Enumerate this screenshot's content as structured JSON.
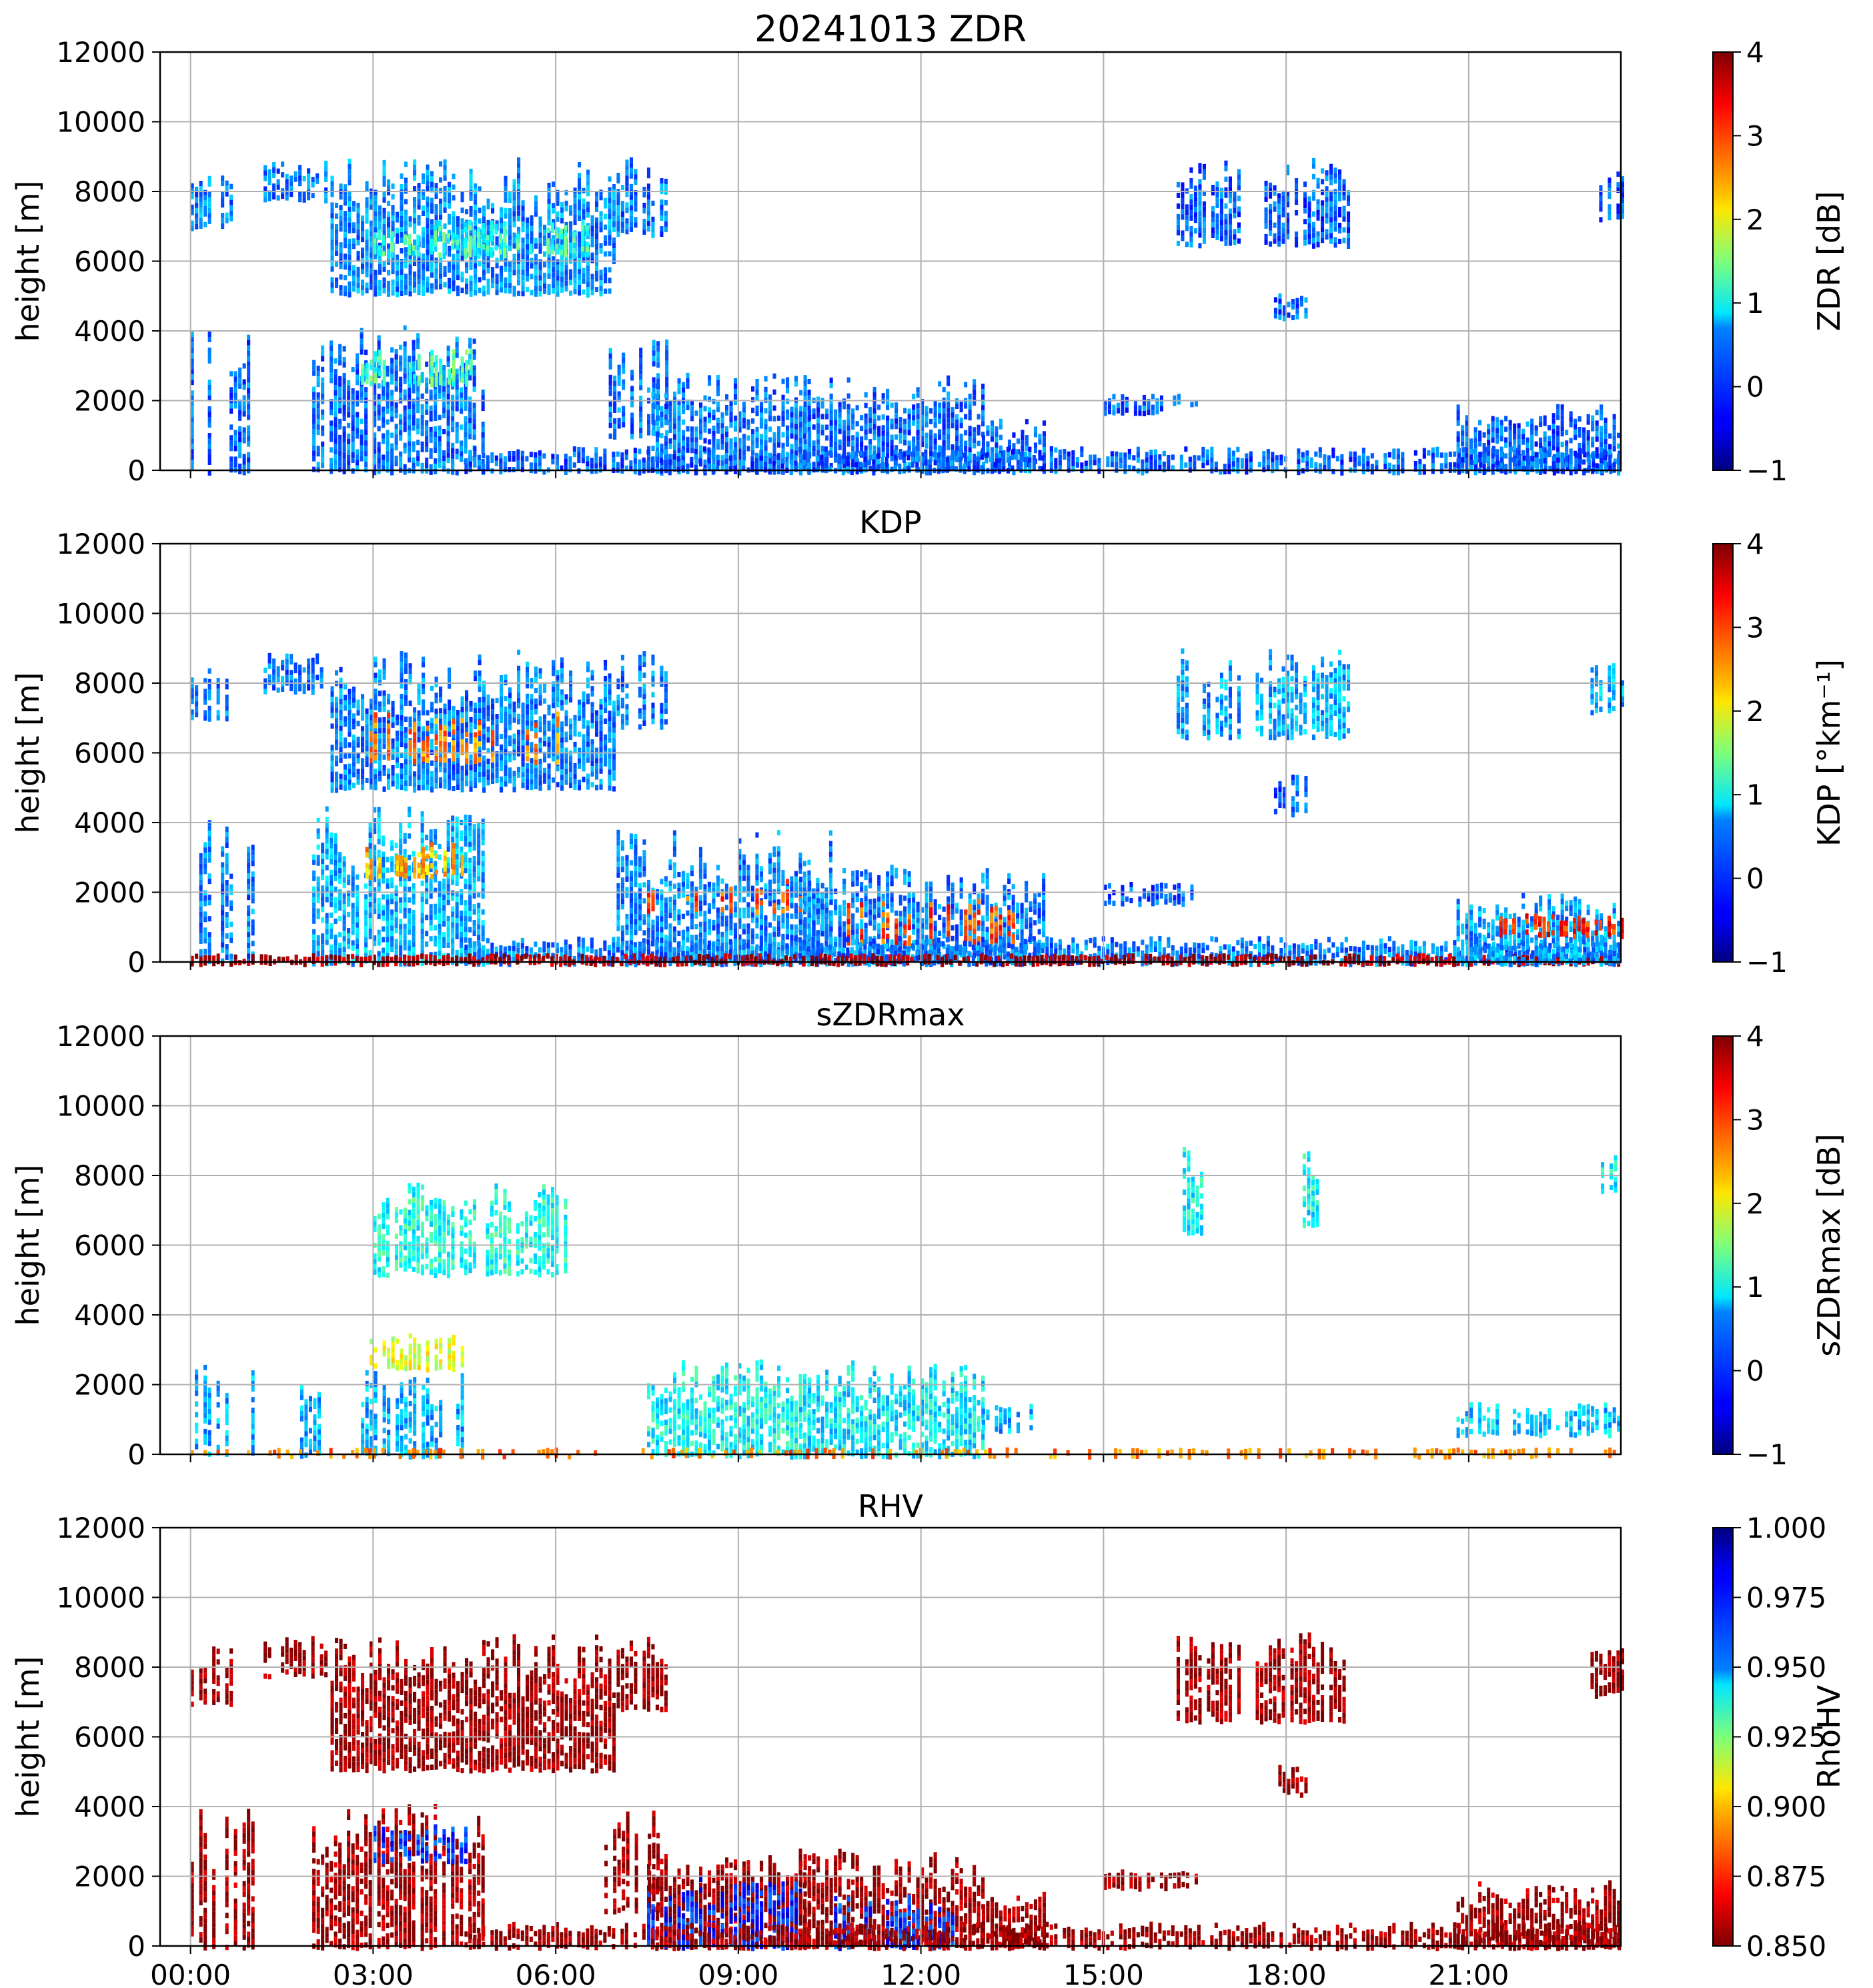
{
  "figure": {
    "colormap": "jet"
  },
  "chart_data": [
    {
      "type": "heatmap",
      "title": "20241013 ZDR",
      "ylabel": "height [m]",
      "ylim": [
        0,
        12000
      ],
      "yticks": [
        "0",
        "2000",
        "4000",
        "6000",
        "8000",
        "10000",
        "12000"
      ],
      "xlim": [
        -0.5,
        23.5
      ],
      "xticks": [
        "00:00",
        "03:00",
        "06:00",
        "09:00",
        "12:00",
        "15:00",
        "18:00",
        "21:00"
      ],
      "show_xticklabels": false,
      "colorbar": {
        "label": "ZDR [dB]",
        "range": [
          -1,
          4
        ],
        "ticks": [
          "−1",
          "0",
          "1",
          "2",
          "3",
          "4"
        ],
        "reversed": false
      },
      "regions": [
        {
          "t0": 0.0,
          "t1": 0.7,
          "h0": 7000,
          "h1": 8600,
          "level": 0.25
        },
        {
          "t0": 0.0,
          "t1": 1.0,
          "h0": 0,
          "h1": 4000,
          "level": 0.22,
          "density": 0.35
        },
        {
          "t0": 1.2,
          "t1": 2.2,
          "h0": 7800,
          "h1": 8900,
          "level": 0.24
        },
        {
          "t0": 2.3,
          "t1": 7.0,
          "h0": 5100,
          "h1": 9000,
          "level": 0.26,
          "density": 0.8
        },
        {
          "t0": 3.0,
          "t1": 6.5,
          "h0": 6200,
          "h1": 7200,
          "level": 0.42,
          "density": 0.45
        },
        {
          "t0": 2.0,
          "t1": 4.8,
          "h0": 0,
          "h1": 4200,
          "level": 0.24,
          "density": 0.7
        },
        {
          "t0": 2.8,
          "t1": 4.6,
          "h0": 2500,
          "h1": 3500,
          "level": 0.45,
          "density": 0.5
        },
        {
          "t0": 7.0,
          "t1": 7.8,
          "h0": 6800,
          "h1": 9000,
          "level": 0.24
        },
        {
          "t0": 6.8,
          "t1": 7.8,
          "h0": 1000,
          "h1": 3900,
          "level": 0.24,
          "density": 0.4
        },
        {
          "t0": 7.5,
          "t1": 10.2,
          "h0": 0,
          "h1": 2800,
          "level": 0.24,
          "density": 0.85
        },
        {
          "t0": 10.0,
          "t1": 13.0,
          "h0": 0,
          "h1": 2800,
          "level": 0.23,
          "density": 0.8
        },
        {
          "t0": 13.0,
          "t1": 14.0,
          "h0": 0,
          "h1": 1600,
          "level": 0.22,
          "density": 0.7
        },
        {
          "t0": 4.5,
          "t1": 23.5,
          "h0": 0,
          "h1": 700,
          "level": 0.22,
          "density": 0.7
        },
        {
          "t0": 16.2,
          "t1": 17.2,
          "h0": 6500,
          "h1": 9000,
          "level": 0.22,
          "density": 0.6
        },
        {
          "t0": 17.5,
          "t1": 19.0,
          "h0": 6500,
          "h1": 9000,
          "level": 0.22,
          "density": 0.7
        },
        {
          "t0": 17.8,
          "t1": 18.3,
          "h0": 4400,
          "h1": 5200,
          "level": 0.22
        },
        {
          "t0": 15.0,
          "t1": 16.5,
          "h0": 1700,
          "h1": 2200,
          "level": 0.22,
          "density": 0.5
        },
        {
          "t0": 20.8,
          "t1": 23.5,
          "h0": 0,
          "h1": 1900,
          "level": 0.22,
          "density": 0.85
        },
        {
          "t0": 23.0,
          "t1": 23.5,
          "h0": 7200,
          "h1": 8800,
          "level": 0.22
        }
      ]
    },
    {
      "type": "heatmap",
      "title": "KDP",
      "ylabel": "height [m]",
      "ylim": [
        0,
        12000
      ],
      "yticks": [
        "0",
        "2000",
        "4000",
        "6000",
        "8000",
        "10000",
        "12000"
      ],
      "xlim": [
        -0.5,
        23.5
      ],
      "xticks": [
        "00:00",
        "03:00",
        "06:00",
        "09:00",
        "12:00",
        "15:00",
        "18:00",
        "21:00"
      ],
      "show_xticklabels": false,
      "colorbar": {
        "label": "KDP [°km⁻¹]",
        "range": [
          -1,
          4
        ],
        "ticks": [
          "−1",
          "0",
          "1",
          "2",
          "3",
          "4"
        ],
        "reversed": false
      },
      "regions": [
        {
          "t0": 0.0,
          "t1": 0.7,
          "h0": 7000,
          "h1": 8600,
          "level": 0.25
        },
        {
          "t0": 0.0,
          "t1": 1.0,
          "h0": 0,
          "h1": 4500,
          "level": 0.25,
          "density": 0.45
        },
        {
          "t0": 1.2,
          "t1": 2.2,
          "h0": 7800,
          "h1": 8900,
          "level": 0.24
        },
        {
          "t0": 2.3,
          "t1": 7.0,
          "h0": 5000,
          "h1": 9000,
          "level": 0.25,
          "density": 0.85
        },
        {
          "t0": 2.8,
          "t1": 6.2,
          "h0": 5800,
          "h1": 7200,
          "level": 0.75,
          "density": 0.35
        },
        {
          "t0": 2.0,
          "t1": 4.8,
          "h0": 0,
          "h1": 4500,
          "level": 0.3,
          "density": 0.75
        },
        {
          "t0": 2.8,
          "t1": 4.5,
          "h0": 2500,
          "h1": 3500,
          "level": 0.7,
          "density": 0.35
        },
        {
          "t0": 7.0,
          "t1": 7.8,
          "h0": 6800,
          "h1": 9000,
          "level": 0.25
        },
        {
          "t0": 7.0,
          "t1": 10.5,
          "h0": 0,
          "h1": 3800,
          "level": 0.26,
          "density": 0.8
        },
        {
          "t0": 7.5,
          "t1": 10.0,
          "h0": 1500,
          "h1": 2400,
          "level": 0.8,
          "density": 0.3
        },
        {
          "t0": 10.0,
          "t1": 14.0,
          "h0": 0,
          "h1": 2800,
          "level": 0.25,
          "density": 0.8
        },
        {
          "t0": 10.5,
          "t1": 13.5,
          "h0": 600,
          "h1": 1900,
          "level": 0.8,
          "density": 0.3
        },
        {
          "t0": 4.5,
          "t1": 23.5,
          "h0": 0,
          "h1": 750,
          "level": 0.25,
          "density": 0.8
        },
        {
          "t0": 0.0,
          "t1": 23.5,
          "h0": 0,
          "h1": 250,
          "level": 0.97,
          "density": 0.85
        },
        {
          "t0": 16.2,
          "t1": 17.2,
          "h0": 6500,
          "h1": 9000,
          "level": 0.28,
          "density": 0.6
        },
        {
          "t0": 17.5,
          "t1": 19.0,
          "h0": 6500,
          "h1": 9000,
          "level": 0.3,
          "density": 0.7
        },
        {
          "t0": 17.8,
          "t1": 18.3,
          "h0": 4300,
          "h1": 5400,
          "level": 0.22
        },
        {
          "t0": 15.0,
          "t1": 16.5,
          "h0": 1700,
          "h1": 2300,
          "level": 0.22,
          "density": 0.55
        },
        {
          "t0": 20.8,
          "t1": 23.5,
          "h0": 0,
          "h1": 2000,
          "level": 0.28,
          "density": 0.85
        },
        {
          "t0": 21.5,
          "t1": 23.5,
          "h0": 800,
          "h1": 1400,
          "level": 0.85,
          "density": 0.3
        },
        {
          "t0": 23.0,
          "t1": 23.5,
          "h0": 7200,
          "h1": 8800,
          "level": 0.3
        }
      ]
    },
    {
      "type": "heatmap",
      "title": "sZDRmax",
      "ylabel": "height [m]",
      "ylim": [
        0,
        12000
      ],
      "yticks": [
        "0",
        "2000",
        "4000",
        "6000",
        "8000",
        "10000",
        "12000"
      ],
      "xlim": [
        -0.5,
        23.5
      ],
      "xticks": [
        "00:00",
        "03:00",
        "06:00",
        "09:00",
        "12:00",
        "15:00",
        "18:00",
        "21:00"
      ],
      "show_xticklabels": false,
      "colorbar": {
        "label": "sZDRmax [dB]",
        "range": [
          -1,
          4
        ],
        "ticks": [
          "−1",
          "0",
          "1",
          "2",
          "3",
          "4"
        ],
        "reversed": false
      },
      "regions": [
        {
          "t0": 3.0,
          "t1": 6.2,
          "h0": 5200,
          "h1": 7800,
          "level": 0.4,
          "density": 0.7
        },
        {
          "t0": 2.8,
          "t1": 4.5,
          "h0": 2500,
          "h1": 3500,
          "level": 0.6,
          "density": 0.6
        },
        {
          "t0": 0.0,
          "t1": 1.0,
          "h0": 0,
          "h1": 3000,
          "level": 0.3,
          "density": 0.25
        },
        {
          "t0": 1.8,
          "t1": 2.1,
          "h0": 0,
          "h1": 2200,
          "level": 0.3
        },
        {
          "t0": 2.8,
          "t1": 4.5,
          "h0": 0,
          "h1": 2500,
          "level": 0.3,
          "density": 0.45
        },
        {
          "t0": 7.5,
          "t1": 10.2,
          "h0": 0,
          "h1": 2800,
          "level": 0.38,
          "density": 0.85
        },
        {
          "t0": 10.0,
          "t1": 13.0,
          "h0": 0,
          "h1": 2800,
          "level": 0.36,
          "density": 0.75
        },
        {
          "t0": 13.0,
          "t1": 14.0,
          "h0": 700,
          "h1": 1500,
          "level": 0.3,
          "density": 0.4
        },
        {
          "t0": 0.0,
          "t1": 23.5,
          "h0": 0,
          "h1": 200,
          "level": 0.75,
          "density": 0.3
        },
        {
          "t0": 16.3,
          "t1": 16.6,
          "h0": 6400,
          "h1": 9000,
          "level": 0.38
        },
        {
          "t0": 18.2,
          "t1": 18.5,
          "h0": 6600,
          "h1": 8800,
          "level": 0.38
        },
        {
          "t0": 20.8,
          "t1": 23.5,
          "h0": 600,
          "h1": 1500,
          "level": 0.32,
          "density": 0.5
        },
        {
          "t0": 23.1,
          "t1": 23.4,
          "h0": 7600,
          "h1": 8600,
          "level": 0.38
        }
      ]
    },
    {
      "type": "heatmap",
      "title": "RHV",
      "ylabel": "height [m]",
      "ylim": [
        0,
        12000
      ],
      "yticks": [
        "0",
        "2000",
        "4000",
        "6000",
        "8000",
        "10000",
        "12000"
      ],
      "xlim": [
        -0.5,
        23.5
      ],
      "xticks": [
        "00:00",
        "03:00",
        "06:00",
        "09:00",
        "12:00",
        "15:00",
        "18:00",
        "21:00"
      ],
      "show_xticklabels": true,
      "colorbar": {
        "label": "RhoHV",
        "range": [
          0.85,
          1.0
        ],
        "ticks": [
          "0.850",
          "0.875",
          "0.900",
          "0.925",
          "0.950",
          "0.975",
          "1.000"
        ],
        "reversed": true
      },
      "regions": [
        {
          "t0": 0.0,
          "t1": 0.7,
          "h0": 7000,
          "h1": 8600,
          "level": 0.98
        },
        {
          "t0": 0.0,
          "t1": 1.0,
          "h0": 0,
          "h1": 4000,
          "level": 0.98,
          "density": 0.35
        },
        {
          "t0": 1.2,
          "t1": 2.2,
          "h0": 7800,
          "h1": 8900,
          "level": 0.98
        },
        {
          "t0": 2.3,
          "t1": 7.0,
          "h0": 5100,
          "h1": 9000,
          "level": 0.98,
          "density": 0.8
        },
        {
          "t0": 2.0,
          "t1": 4.8,
          "h0": 0,
          "h1": 4200,
          "level": 0.97,
          "density": 0.7
        },
        {
          "t0": 3.0,
          "t1": 4.5,
          "h0": 2500,
          "h1": 3500,
          "level": 0.18,
          "density": 0.6
        },
        {
          "t0": 7.0,
          "t1": 7.8,
          "h0": 6800,
          "h1": 9000,
          "level": 0.98
        },
        {
          "t0": 6.8,
          "t1": 7.8,
          "h0": 1000,
          "h1": 3900,
          "level": 0.98,
          "density": 0.4
        },
        {
          "t0": 7.5,
          "t1": 10.2,
          "h0": 0,
          "h1": 2800,
          "level": 0.98,
          "density": 0.8
        },
        {
          "t0": 7.5,
          "t1": 10.0,
          "h0": 0,
          "h1": 2000,
          "level": 0.15,
          "density": 0.55
        },
        {
          "t0": 10.0,
          "t1": 13.0,
          "h0": 0,
          "h1": 2800,
          "level": 0.98,
          "density": 0.8
        },
        {
          "t0": 10.5,
          "t1": 12.5,
          "h0": 0,
          "h1": 1500,
          "level": 0.18,
          "density": 0.4
        },
        {
          "t0": 13.0,
          "t1": 14.0,
          "h0": 0,
          "h1": 1600,
          "level": 0.98,
          "density": 0.7
        },
        {
          "t0": 4.5,
          "t1": 23.5,
          "h0": 0,
          "h1": 700,
          "level": 0.98,
          "density": 0.7
        },
        {
          "t0": 16.2,
          "t1": 17.2,
          "h0": 6500,
          "h1": 9000,
          "level": 0.98,
          "density": 0.6
        },
        {
          "t0": 17.5,
          "t1": 19.0,
          "h0": 6500,
          "h1": 9000,
          "level": 0.98,
          "density": 0.7
        },
        {
          "t0": 17.8,
          "t1": 18.3,
          "h0": 4400,
          "h1": 5200,
          "level": 0.98
        },
        {
          "t0": 15.0,
          "t1": 16.5,
          "h0": 1700,
          "h1": 2200,
          "level": 0.98,
          "density": 0.5
        },
        {
          "t0": 20.8,
          "t1": 23.5,
          "h0": 0,
          "h1": 1900,
          "level": 0.98,
          "density": 0.85
        },
        {
          "t0": 23.0,
          "t1": 23.5,
          "h0": 7200,
          "h1": 8800,
          "level": 0.98
        }
      ]
    }
  ]
}
